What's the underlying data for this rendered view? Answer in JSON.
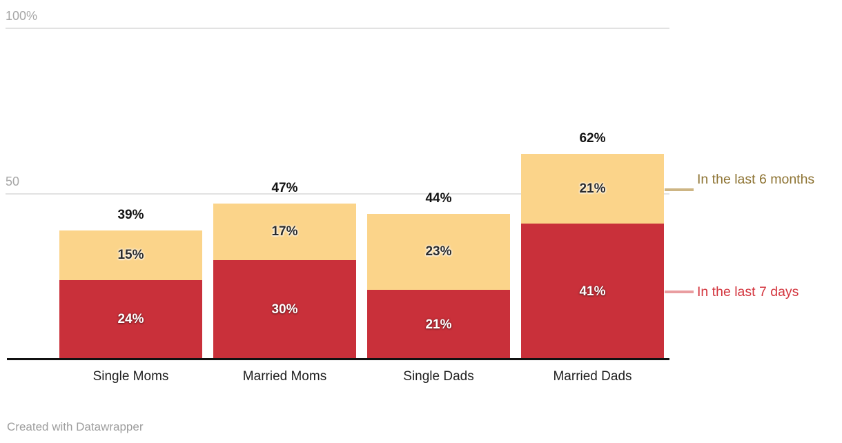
{
  "chart_data": {
    "type": "bar",
    "stacked": true,
    "title": "",
    "categories": [
      "Single Moms",
      "Married Moms",
      "Single Dads",
      "Married Dads"
    ],
    "series": [
      {
        "name": "In the last 7 days",
        "color": "#c9303a",
        "values": [
          24,
          30,
          21,
          41
        ]
      },
      {
        "name": "In the last 6 months",
        "color": "#fbd48a",
        "values": [
          15,
          17,
          23,
          21
        ]
      }
    ],
    "totals": [
      "39%",
      "47%",
      "44%",
      "62%"
    ],
    "total_values": [
      39,
      47,
      44,
      62
    ],
    "value_suffix": "%",
    "ylim": [
      0,
      100
    ],
    "y_ticks": [
      {
        "label": "100%",
        "value": 100
      },
      {
        "label": "50",
        "value": 50
      }
    ],
    "grid": true,
    "legend_position": "right"
  },
  "legend": {
    "items": [
      {
        "label": "In the last 6 months",
        "text_color": "#8e7434",
        "line_color": "#cdb584"
      },
      {
        "label": "In the last 7 days",
        "text_color": "#d3353e",
        "line_color": "#e99da0"
      }
    ]
  },
  "footer": {
    "text": "Created with Datawrapper"
  }
}
